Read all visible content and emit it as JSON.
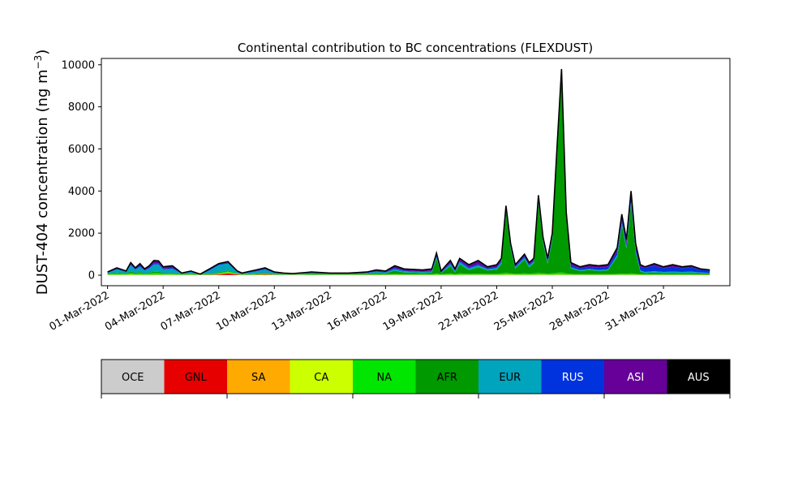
{
  "chart_data": {
    "type": "area",
    "title": "Continental contribution to BC concentrations (FLEXDUST)",
    "ylabel": "DUST-404 concentration (ng m",
    "ylabel_unit_sup": "−3",
    "ylabel_close": ")",
    "xlabel": "",
    "ylim": [
      -500,
      10300
    ],
    "yticks": [
      0,
      2000,
      4000,
      6000,
      8000,
      10000
    ],
    "xlim": [
      "2022-02-28T16:00",
      "2022-04-03T14:00"
    ],
    "xticks": [
      "01-Mar-2022",
      "04-Mar-2022",
      "07-Mar-2022",
      "10-Mar-2022",
      "13-Mar-2022",
      "16-Mar-2022",
      "19-Mar-2022",
      "22-Mar-2022",
      "25-Mar-2022",
      "28-Mar-2022",
      "31-Mar-2022"
    ],
    "stacked": true,
    "grid": false,
    "x": [
      "2022-03-01T00:00",
      "2022-03-01T12:00",
      "2022-03-02T00:00",
      "2022-03-02T06:00",
      "2022-03-02T12:00",
      "2022-03-02T18:00",
      "2022-03-03T00:00",
      "2022-03-03T06:00",
      "2022-03-03T12:00",
      "2022-03-03T18:00",
      "2022-03-04T00:00",
      "2022-03-04T06:00",
      "2022-03-04T12:00",
      "2022-03-05T00:00",
      "2022-03-05T12:00",
      "2022-03-06T00:00",
      "2022-03-06T12:00",
      "2022-03-07T00:00",
      "2022-03-07T12:00",
      "2022-03-08T00:00",
      "2022-03-08T06:00",
      "2022-03-08T12:00",
      "2022-03-09T00:00",
      "2022-03-09T12:00",
      "2022-03-10T00:00",
      "2022-03-10T12:00",
      "2022-03-11T00:00",
      "2022-03-12T00:00",
      "2022-03-13T00:00",
      "2022-03-14T00:00",
      "2022-03-15T00:00",
      "2022-03-15T12:00",
      "2022-03-16T00:00",
      "2022-03-16T12:00",
      "2022-03-17T00:00",
      "2022-03-18T00:00",
      "2022-03-18T12:00",
      "2022-03-18T18:00",
      "2022-03-19T00:00",
      "2022-03-19T12:00",
      "2022-03-19T18:00",
      "2022-03-20T00:00",
      "2022-03-20T12:00",
      "2022-03-21T00:00",
      "2022-03-21T12:00",
      "2022-03-22T00:00",
      "2022-03-22T06:00",
      "2022-03-22T12:00",
      "2022-03-22T18:00",
      "2022-03-23T00:00",
      "2022-03-23T12:00",
      "2022-03-23T18:00",
      "2022-03-24T00:00",
      "2022-03-24T06:00",
      "2022-03-24T12:00",
      "2022-03-24T18:00",
      "2022-03-25T00:00",
      "2022-03-25T06:00",
      "2022-03-25T12:00",
      "2022-03-25T18:00",
      "2022-03-26T00:00",
      "2022-03-26T12:00",
      "2022-03-27T00:00",
      "2022-03-27T12:00",
      "2022-03-28T00:00",
      "2022-03-28T12:00",
      "2022-03-28T18:00",
      "2022-03-29T00:00",
      "2022-03-29T06:00",
      "2022-03-29T12:00",
      "2022-03-29T18:00",
      "2022-03-30T00:00",
      "2022-03-30T12:00",
      "2022-03-31T00:00",
      "2022-03-31T12:00",
      "2022-04-01T00:00",
      "2022-04-01T12:00",
      "2022-04-02T00:00",
      "2022-04-02T12:00"
    ],
    "total": [
      150,
      350,
      200,
      600,
      350,
      550,
      300,
      450,
      700,
      680,
      400,
      420,
      450,
      100,
      200,
      50,
      300,
      550,
      650,
      200,
      100,
      150,
      250,
      350,
      150,
      100,
      80,
      150,
      100,
      100,
      150,
      250,
      200,
      450,
      300,
      250,
      300,
      1050,
      200,
      700,
      300,
      800,
      500,
      700,
      400,
      500,
      800,
      3300,
      1500,
      500,
      1000,
      600,
      800,
      3800,
      1800,
      800,
      2000,
      6000,
      9800,
      3000,
      600,
      400,
      500,
      450,
      500,
      1300,
      2900,
      1700,
      4000,
      1500,
      500,
      400,
      550,
      400,
      500,
      400,
      450,
      300,
      250
    ],
    "series": [
      {
        "name": "OCE",
        "color": "#cccccc",
        "values": [
          5,
          5,
          5,
          5,
          5,
          5,
          5,
          5,
          5,
          5,
          5,
          5,
          5,
          5,
          5,
          5,
          5,
          5,
          5,
          5,
          5,
          5,
          5,
          5,
          5,
          5,
          5,
          5,
          5,
          5,
          5,
          5,
          5,
          5,
          5,
          5,
          5,
          5,
          5,
          5,
          5,
          5,
          5,
          5,
          5,
          5,
          5,
          5,
          5,
          5,
          5,
          5,
          5,
          5,
          5,
          5,
          5,
          5,
          5,
          5,
          5,
          5,
          5,
          5,
          5,
          5,
          5,
          5,
          5,
          5,
          5,
          5,
          5,
          5,
          5,
          5,
          5,
          5,
          5
        ]
      },
      {
        "name": "GNL",
        "color": "#e60000",
        "values": [
          5,
          5,
          5,
          5,
          5,
          5,
          5,
          5,
          5,
          5,
          5,
          5,
          5,
          5,
          5,
          5,
          10,
          30,
          90,
          30,
          5,
          5,
          10,
          30,
          10,
          5,
          5,
          5,
          5,
          5,
          5,
          5,
          5,
          5,
          5,
          5,
          5,
          5,
          5,
          5,
          5,
          5,
          5,
          5,
          5,
          5,
          5,
          5,
          5,
          5,
          5,
          5,
          5,
          5,
          5,
          5,
          5,
          5,
          5,
          5,
          5,
          5,
          5,
          5,
          5,
          5,
          5,
          5,
          5,
          5,
          5,
          5,
          5,
          5,
          5,
          5,
          5,
          5,
          5
        ]
      },
      {
        "name": "SA",
        "color": "#ffaa00",
        "values": [
          5,
          5,
          5,
          5,
          5,
          5,
          5,
          5,
          5,
          5,
          5,
          5,
          5,
          5,
          5,
          5,
          5,
          10,
          30,
          10,
          5,
          5,
          5,
          10,
          5,
          5,
          5,
          5,
          5,
          5,
          5,
          5,
          5,
          5,
          5,
          5,
          5,
          5,
          5,
          5,
          5,
          5,
          5,
          5,
          5,
          5,
          5,
          5,
          5,
          5,
          5,
          5,
          5,
          5,
          5,
          5,
          5,
          5,
          5,
          5,
          5,
          5,
          5,
          5,
          5,
          5,
          5,
          5,
          5,
          5,
          5,
          5,
          5,
          5,
          5,
          5,
          5,
          5,
          5
        ]
      },
      {
        "name": "CA",
        "color": "#ccff00",
        "values": [
          10,
          10,
          10,
          20,
          10,
          10,
          10,
          10,
          10,
          10,
          10,
          10,
          10,
          5,
          5,
          5,
          5,
          10,
          10,
          5,
          5,
          5,
          5,
          5,
          5,
          5,
          5,
          5,
          5,
          5,
          5,
          5,
          5,
          10,
          5,
          5,
          5,
          10,
          5,
          10,
          5,
          10,
          10,
          10,
          10,
          10,
          10,
          20,
          20,
          10,
          10,
          10,
          10,
          20,
          20,
          10,
          10,
          20,
          20,
          10,
          10,
          5,
          5,
          5,
          5,
          10,
          10,
          10,
          10,
          10,
          5,
          5,
          5,
          5,
          5,
          5,
          5,
          5,
          5
        ]
      },
      {
        "name": "NA",
        "color": "#00e600",
        "values": [
          30,
          60,
          40,
          80,
          50,
          80,
          40,
          60,
          80,
          80,
          50,
          50,
          50,
          20,
          30,
          10,
          30,
          50,
          50,
          30,
          20,
          20,
          30,
          40,
          20,
          15,
          10,
          20,
          15,
          15,
          20,
          30,
          25,
          40,
          30,
          30,
          30,
          60,
          25,
          60,
          30,
          60,
          40,
          50,
          40,
          40,
          60,
          80,
          60,
          40,
          60,
          50,
          60,
          80,
          60,
          50,
          60,
          80,
          100,
          60,
          40,
          30,
          30,
          30,
          30,
          40,
          50,
          40,
          60,
          40,
          30,
          25,
          30,
          25,
          25,
          25,
          25,
          20,
          20
        ]
      },
      {
        "name": "AFR",
        "color": "#009900",
        "values": [
          20,
          40,
          30,
          60,
          40,
          50,
          30,
          40,
          60,
          60,
          30,
          30,
          30,
          10,
          20,
          5,
          20,
          30,
          40,
          15,
          10,
          10,
          20,
          30,
          10,
          10,
          10,
          20,
          20,
          20,
          30,
          50,
          40,
          150,
          80,
          60,
          70,
          700,
          50,
          350,
          80,
          420,
          180,
          300,
          160,
          200,
          450,
          2900,
          1150,
          250,
          650,
          300,
          480,
          3300,
          1450,
          450,
          1600,
          5500,
          9300,
          2600,
          250,
          150,
          200,
          150,
          180,
          800,
          2300,
          1200,
          3300,
          1000,
          120,
          60,
          80,
          60,
          70,
          60,
          70,
          50,
          40
        ]
      },
      {
        "name": "EUR",
        "color": "#00a5bd",
        "values": [
          40,
          150,
          70,
          300,
          150,
          250,
          130,
          200,
          350,
          350,
          170,
          180,
          200,
          30,
          80,
          10,
          150,
          350,
          330,
          60,
          30,
          60,
          100,
          150,
          60,
          30,
          20,
          50,
          25,
          25,
          40,
          60,
          45,
          80,
          60,
          40,
          60,
          100,
          35,
          100,
          60,
          120,
          80,
          100,
          60,
          80,
          90,
          120,
          80,
          60,
          90,
          80,
          90,
          130,
          90,
          90,
          100,
          120,
          140,
          100,
          70,
          50,
          50,
          50,
          50,
          100,
          120,
          80,
          120,
          80,
          60,
          50,
          60,
          50,
          55,
          50,
          55,
          40,
          35
        ]
      },
      {
        "name": "RUS",
        "color": "#0033dd",
        "values": [
          15,
          25,
          15,
          40,
          30,
          50,
          25,
          40,
          60,
          60,
          40,
          40,
          50,
          5,
          20,
          3,
          30,
          40,
          50,
          15,
          10,
          15,
          30,
          40,
          15,
          10,
          8,
          20,
          10,
          10,
          20,
          30,
          25,
          50,
          35,
          30,
          35,
          60,
          30,
          50,
          35,
          60,
          50,
          60,
          40,
          50,
          60,
          80,
          60,
          50,
          70,
          50,
          60,
          100,
          60,
          70,
          80,
          100,
          100,
          90,
          90,
          80,
          100,
          100,
          120,
          150,
          150,
          150,
          200,
          150,
          170,
          200,
          250,
          180,
          230,
          180,
          200,
          130,
          100
        ]
      },
      {
        "name": "ASI",
        "color": "#660099",
        "values": [
          15,
          45,
          20,
          80,
          50,
          90,
          45,
          80,
          120,
          100,
          85,
          90,
          90,
          10,
          30,
          2,
          40,
          20,
          40,
          25,
          10,
          25,
          40,
          35,
          20,
          15,
          7,
          20,
          10,
          10,
          25,
          60,
          50,
          100,
          75,
          70,
          85,
          100,
          40,
          115,
          75,
          110,
          125,
          160,
          75,
          105,
          115,
          70,
          115,
          75,
          105,
          95,
          85,
          155,
          105,
          115,
          135,
          165,
          125,
          125,
          125,
          70,
          100,
          100,
          100,
          185,
          250,
          205,
          295,
          205,
          100,
          45,
          110,
          65,
          95,
          65,
          80,
          40,
          35
        ]
      },
      {
        "name": "AUS",
        "color": "#000000",
        "values": [
          5,
          5,
          5,
          5,
          5,
          5,
          5,
          5,
          5,
          5,
          5,
          5,
          5,
          5,
          5,
          5,
          5,
          5,
          5,
          5,
          5,
          5,
          5,
          5,
          5,
          5,
          5,
          5,
          5,
          5,
          5,
          5,
          5,
          5,
          5,
          5,
          5,
          5,
          5,
          5,
          5,
          5,
          5,
          5,
          5,
          5,
          5,
          5,
          5,
          5,
          5,
          5,
          5,
          5,
          5,
          5,
          5,
          5,
          5,
          5,
          5,
          5,
          5,
          5,
          5,
          5,
          5,
          5,
          5,
          5,
          5,
          5,
          5,
          5,
          5,
          5,
          5,
          5,
          5
        ]
      }
    ]
  }
}
